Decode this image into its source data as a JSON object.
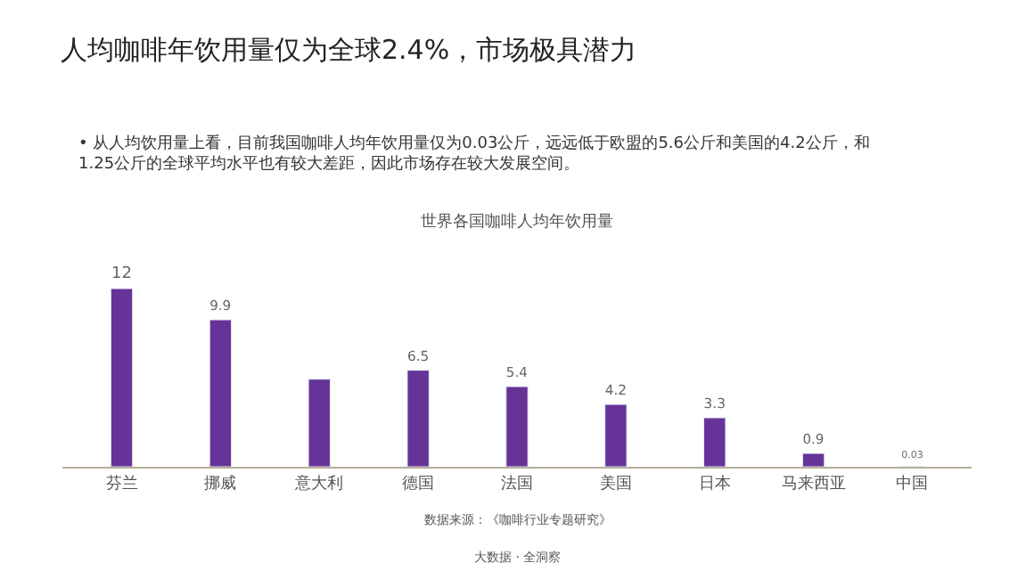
{
  "chart_data": {
    "type": "bar",
    "title": "人均咖啡年饮用量仅为全球2.4%，市场极具潜力",
    "subtitle": "• 从人均饮用量上看，目前我国咖啡人均年饮用量仅为0.03公斤，远远低于欧盟的5.6公斤和美国的4.2公斤，和1.25公斤的全球平均水平也有较大差距，因此市场存在较大发展空间。",
    "annotations": [
      "世界各国咖啡人均年饮用量",
      "数据来源：《咖啡行业专题研究》",
      "大数据 · 全洞察"
    ],
    "categories": [
      "芬兰",
      "挪威",
      "意大利",
      "德国",
      "法国",
      "美国",
      "日本",
      "马来西亚",
      "中国"
    ],
    "values": [
      12,
      9.9,
      5.9,
      6.5,
      5.4,
      4.2,
      3.3,
      0.9,
      0.03
    ],
    "value_labels": [
      "12",
      "9.9",
      null,
      "6.5",
      "5.4",
      "4.2",
      "3.3",
      "0.9",
      "0.03"
    ],
    "color": "#663399"
  }
}
